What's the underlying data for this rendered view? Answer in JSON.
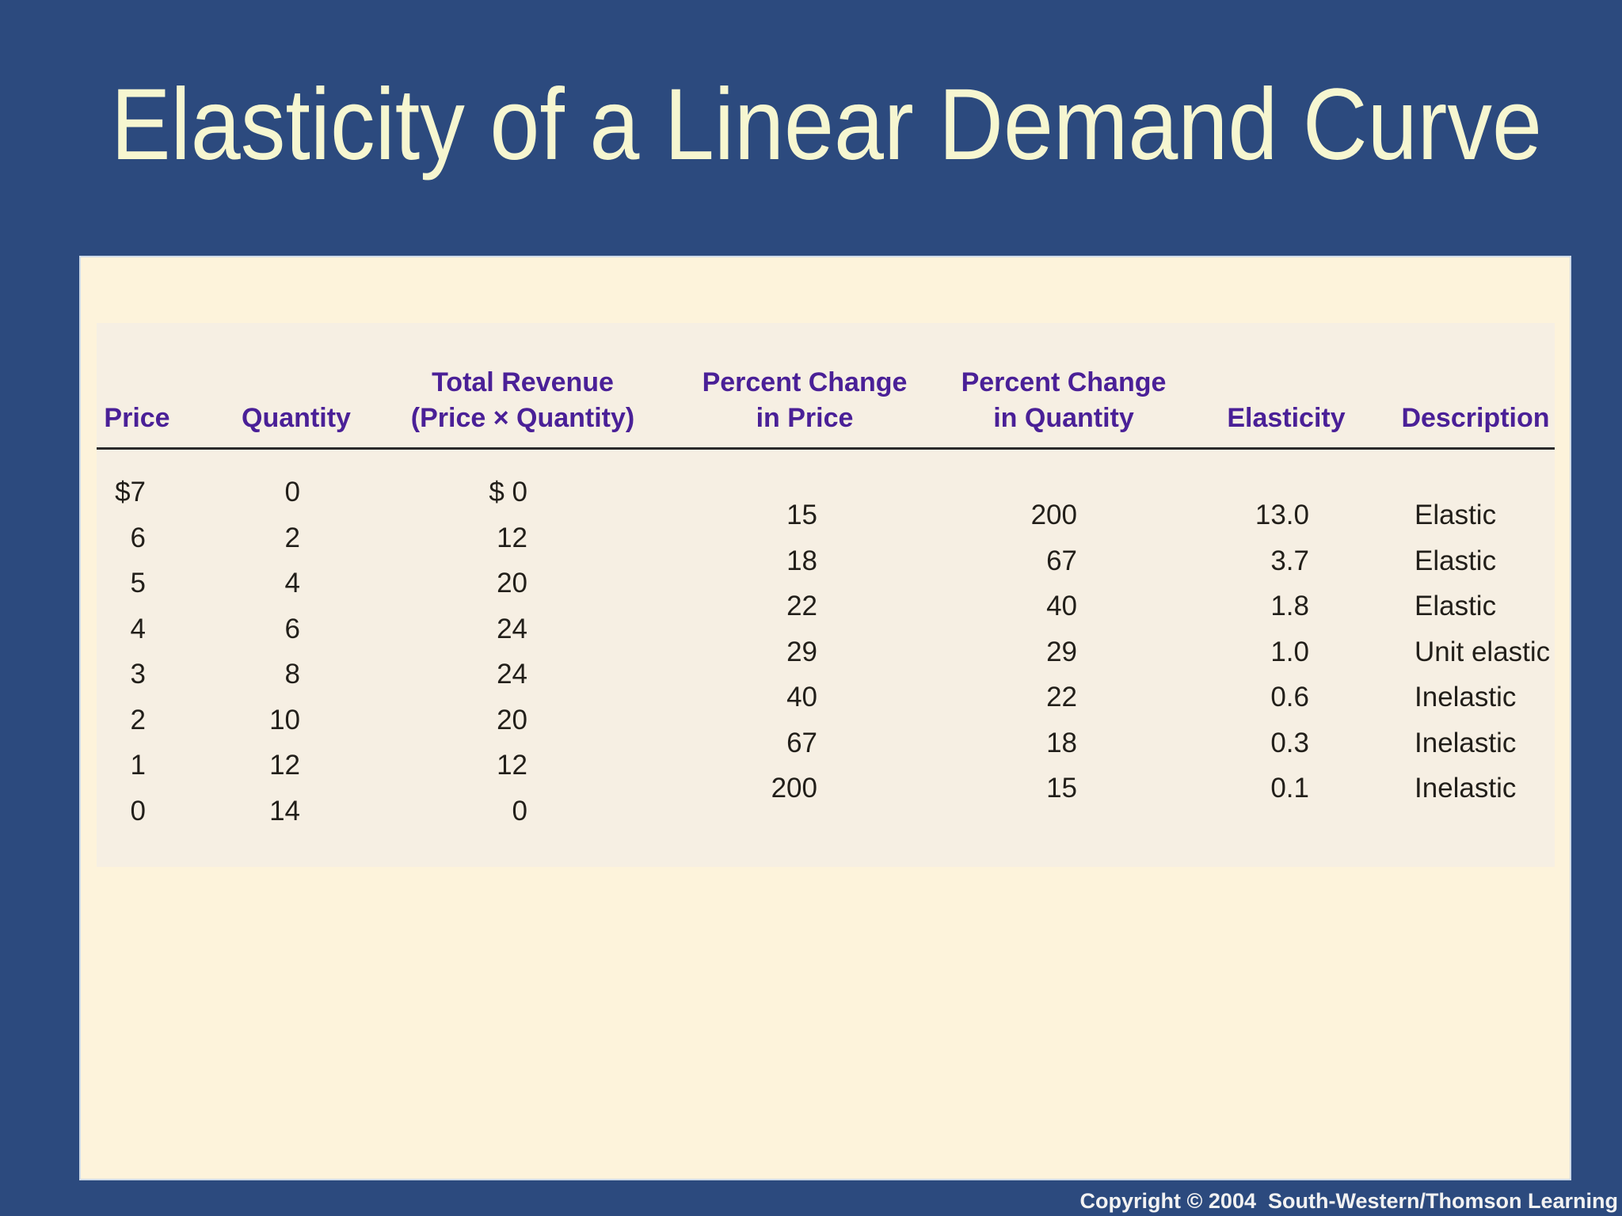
{
  "slide": {
    "title": "Elasticity of a Linear Demand Curve",
    "copyright": "Copyright © 2004  South-Western/Thomson Learning"
  },
  "colors": {
    "background": "#2C4A7E",
    "title_text": "#F6F6D0",
    "panel_outer": "#FDF3DB",
    "panel_inner": "#F6EFE3",
    "header_text": "#4A2097",
    "body_text": "#221F1A",
    "copyright_text": "#F2F2F2"
  },
  "table": {
    "headers": {
      "price": "Price",
      "quantity": "Quantity",
      "revenue_line1": "Total Revenue",
      "revenue_line2": "(Price × Quantity)",
      "pct_price_line1": "Percent Change",
      "pct_price_line2": "in Price",
      "pct_qty_line1": "Percent Change",
      "pct_qty_line2": "in Quantity",
      "elasticity": "Elasticity",
      "description": "Description"
    },
    "schedule_rows": [
      {
        "price": "$7",
        "quantity": "0",
        "revenue": "$ 0"
      },
      {
        "price": "6",
        "quantity": "2",
        "revenue": "12"
      },
      {
        "price": "5",
        "quantity": "4",
        "revenue": "20"
      },
      {
        "price": "4",
        "quantity": "6",
        "revenue": "24"
      },
      {
        "price": "3",
        "quantity": "8",
        "revenue": "24"
      },
      {
        "price": "2",
        "quantity": "10",
        "revenue": "20"
      },
      {
        "price": "1",
        "quantity": "12",
        "revenue": "12"
      },
      {
        "price": "0",
        "quantity": "14",
        "revenue": "0"
      }
    ],
    "elasticity_rows": [
      {
        "pct_price": "15",
        "pct_quantity": "200",
        "elasticity": "13.0",
        "description": "Elastic"
      },
      {
        "pct_price": "18",
        "pct_quantity": "67",
        "elasticity": "3.7",
        "description": "Elastic"
      },
      {
        "pct_price": "22",
        "pct_quantity": "40",
        "elasticity": "1.8",
        "description": "Elastic"
      },
      {
        "pct_price": "29",
        "pct_quantity": "29",
        "elasticity": "1.0",
        "description": "Unit elastic"
      },
      {
        "pct_price": "40",
        "pct_quantity": "22",
        "elasticity": "0.6",
        "description": "Inelastic"
      },
      {
        "pct_price": "67",
        "pct_quantity": "18",
        "elasticity": "0.3",
        "description": "Inelastic"
      },
      {
        "pct_price": "200",
        "pct_quantity": "15",
        "elasticity": "0.1",
        "description": "Inelastic"
      }
    ]
  }
}
